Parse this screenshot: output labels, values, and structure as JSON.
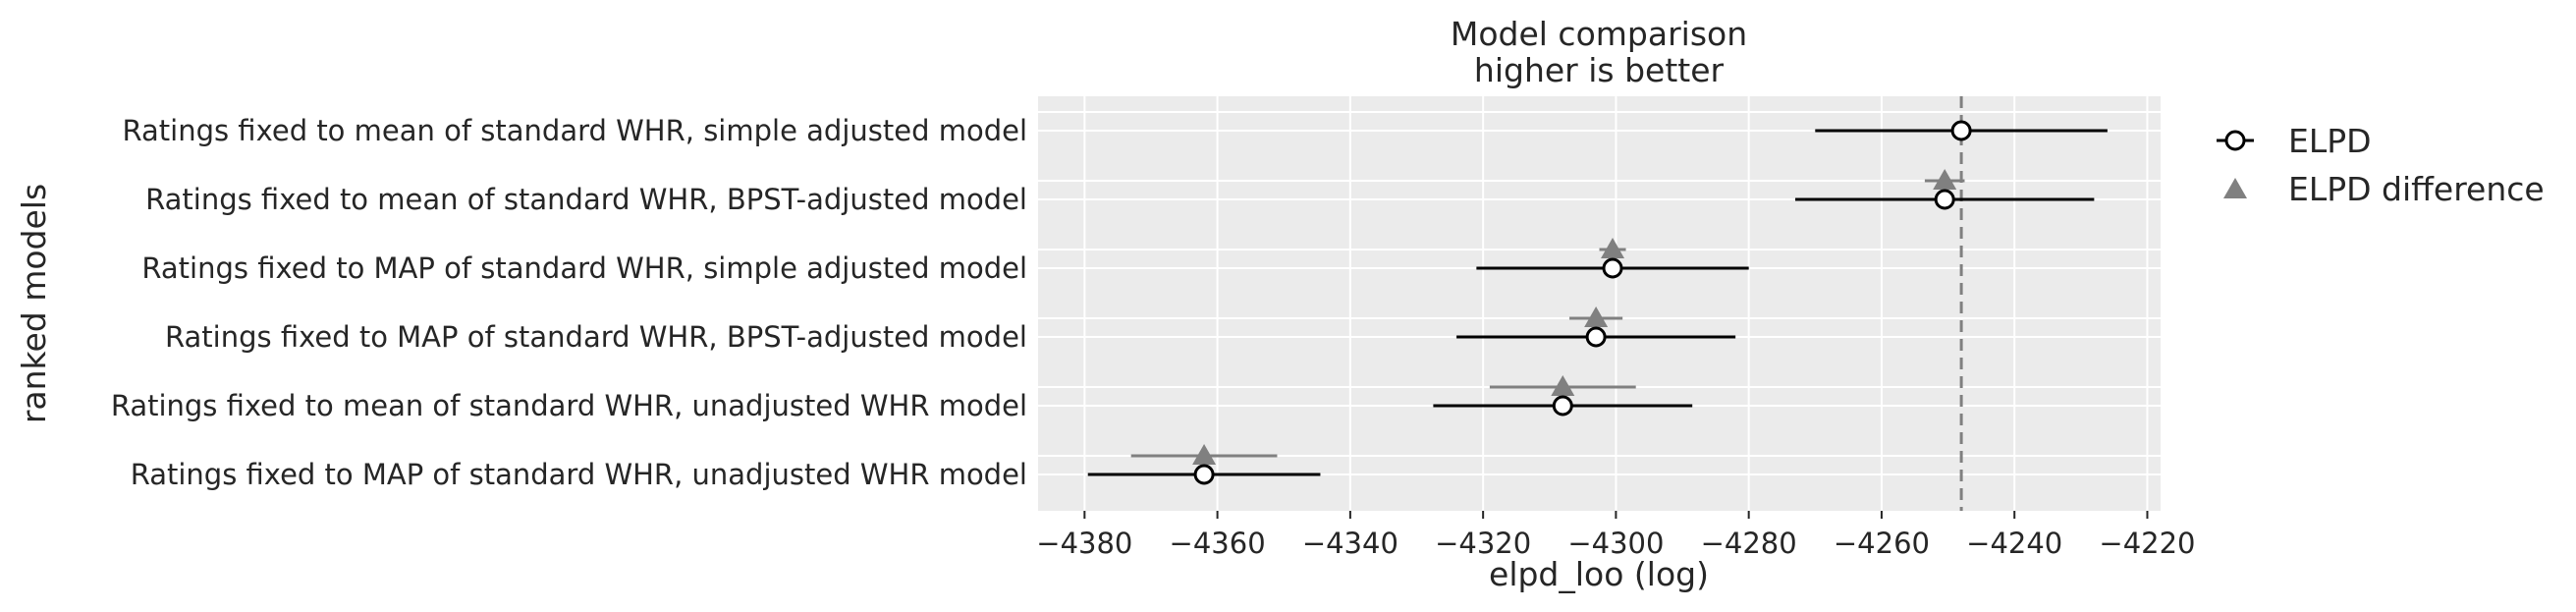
{
  "chart_data": {
    "type": "scatter",
    "title": "Model comparison",
    "subtitle": "higher is better",
    "xlabel": "elpd_loo (log)",
    "ylabel": "ranked models",
    "xlim": [
      -4387,
      -4218
    ],
    "xticks": [
      -4380,
      -4360,
      -4340,
      -4320,
      -4300,
      -4280,
      -4260,
      -4240,
      -4220
    ],
    "xtick_labels": [
      "−4380",
      "−4360",
      "−4340",
      "−4320",
      "−4300",
      "−4280",
      "−4260",
      "−4240",
      "−4220"
    ],
    "grid": true,
    "legend_position": "right",
    "reference_line": -4248,
    "models": [
      "Ratings fixed to mean of standard WHR, simple adjusted model",
      "Ratings fixed to mean of standard WHR, BPST-adjusted model",
      "Ratings fixed to MAP of standard WHR, simple adjusted model",
      "Ratings fixed to MAP of standard WHR, BPST-adjusted model",
      "Ratings fixed to mean of standard WHR, unadjusted WHR model",
      "Ratings fixed to MAP of standard WHR, unadjusted WHR model"
    ],
    "series": [
      {
        "name": "ELPD",
        "values": [
          -4248,
          -4250.5,
          -4300.5,
          -4303,
          -4308,
          -4362
        ],
        "lower": [
          -4270,
          -4273,
          -4321,
          -4324,
          -4327.5,
          -4379.5
        ],
        "upper": [
          -4226,
          -4228,
          -4280,
          -4282,
          -4288.5,
          -4344.5
        ]
      },
      {
        "name": "ELPD difference",
        "values": [
          null,
          -4250.5,
          -4300.5,
          -4303,
          -4308,
          -4362
        ],
        "lower": [
          null,
          -4253.5,
          -4302.5,
          -4307,
          -4319,
          -4373
        ],
        "upper": [
          null,
          -4247.5,
          -4298.5,
          -4299,
          -4297,
          -4351
        ]
      }
    ]
  },
  "colors": {
    "background": "#ebebeb",
    "grid": "#ffffff",
    "elpd": "#000000",
    "difference": "#808080",
    "reference": "#808080",
    "text": "#262626"
  }
}
